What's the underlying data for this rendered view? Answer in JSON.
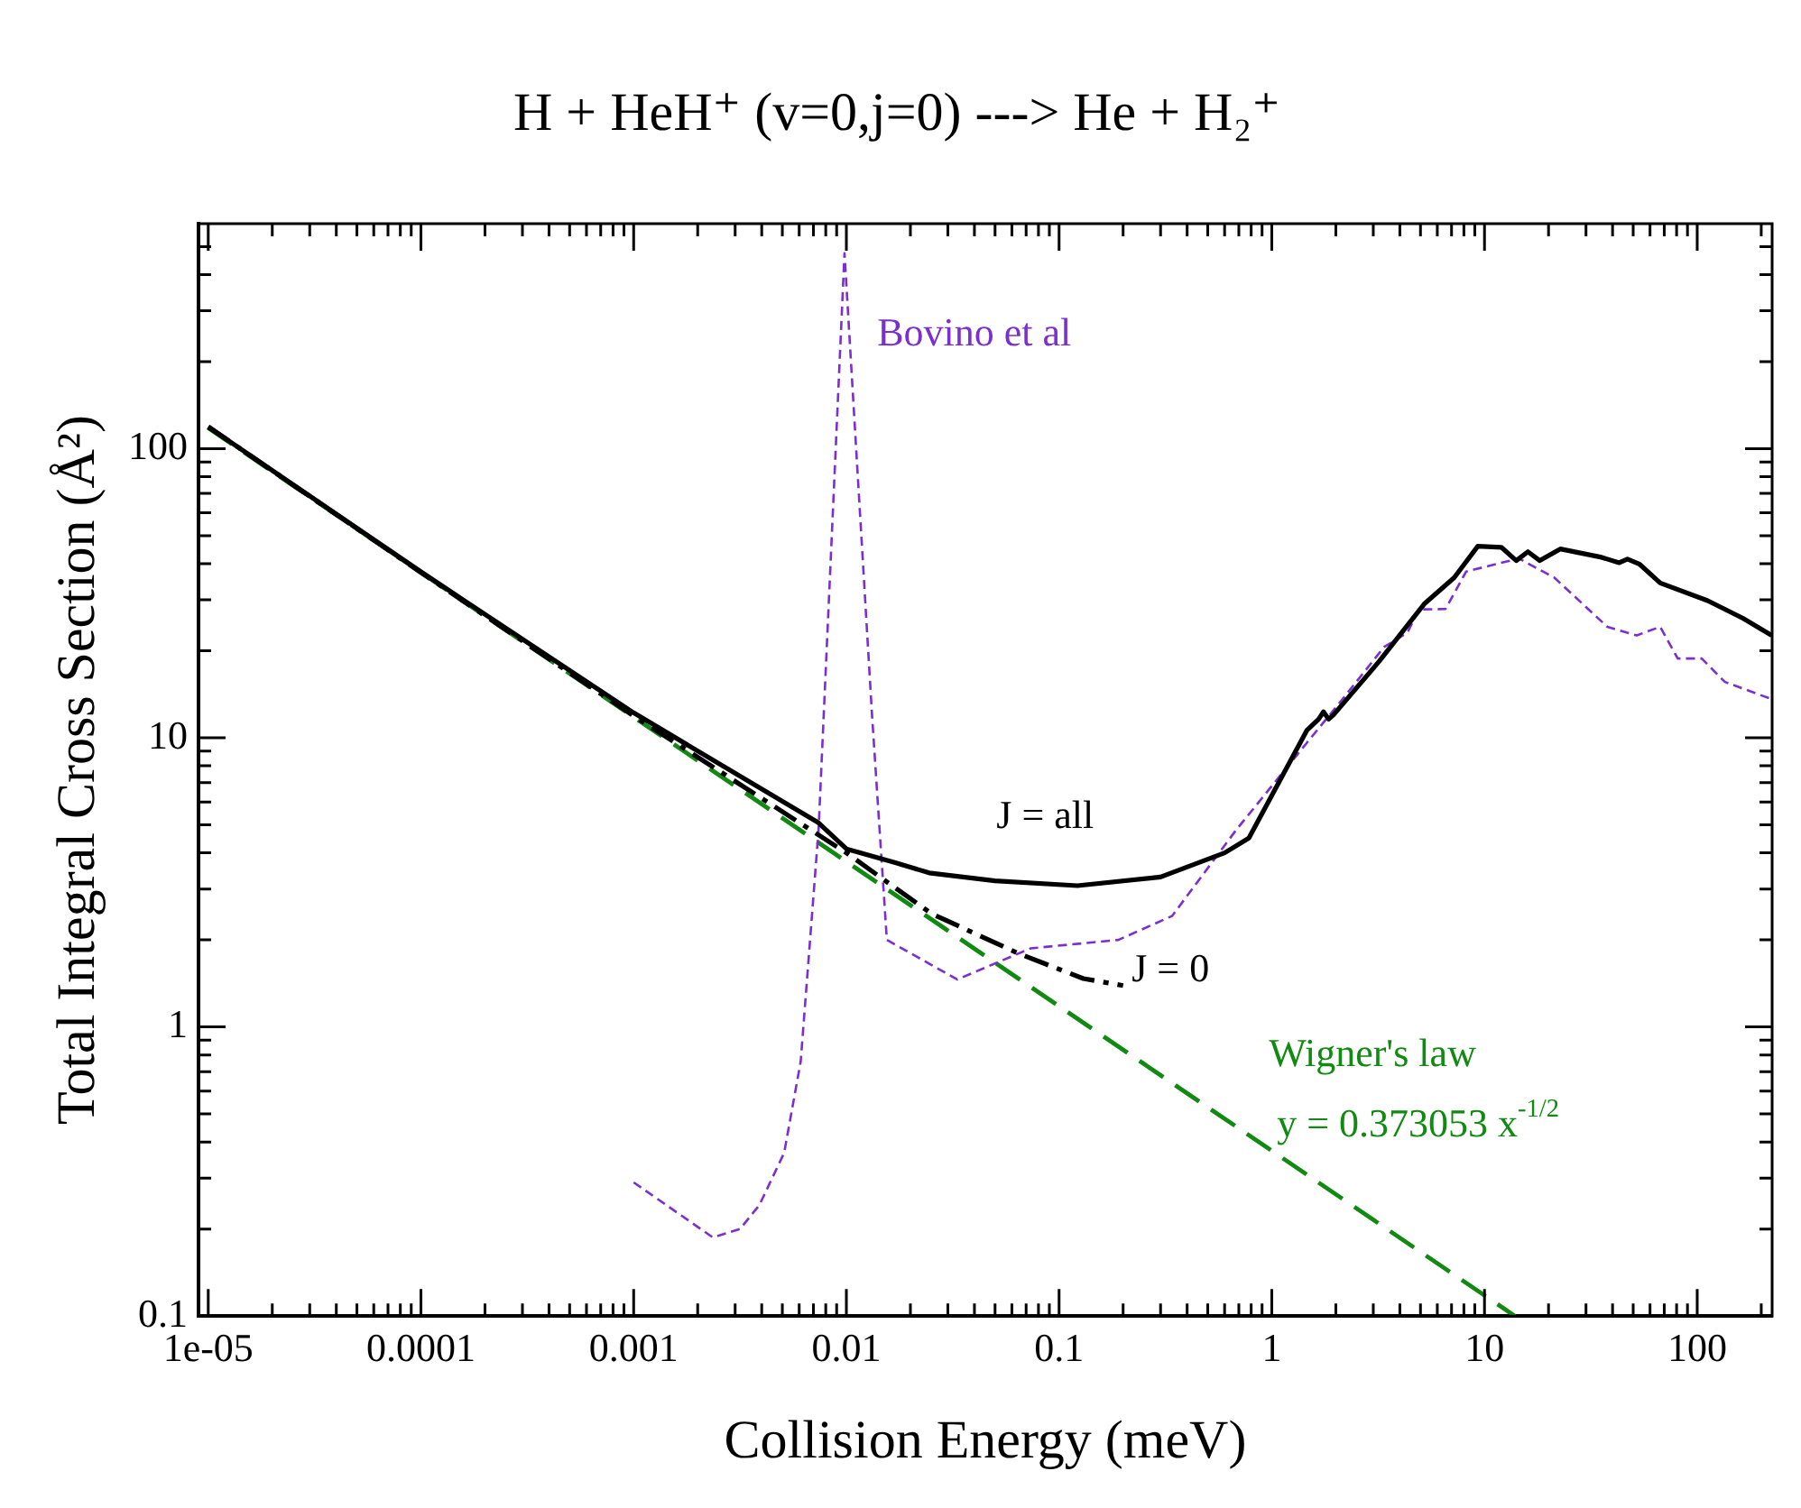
{
  "chart_data": {
    "type": "line",
    "title": "H + HeH⁺ (v=0,j=0) ---> He + H₂⁺",
    "xlabel": "Collision Energy (meV)",
    "ylabel": "Total Integral Cross Section (Å²)",
    "log": "xy",
    "xlim": [
      9e-06,
      225
    ],
    "ylim": [
      0.1,
      600
    ],
    "xticks": [
      {
        "value": 1e-05,
        "label": "1e-05"
      },
      {
        "value": 2e-05,
        "label": null
      },
      {
        "value": 3e-05,
        "label": null
      },
      {
        "value": 4e-05,
        "label": null
      },
      {
        "value": 5e-05,
        "label": null
      },
      {
        "value": 6e-05,
        "label": null
      },
      {
        "value": 7e-05,
        "label": null
      },
      {
        "value": 8e-05,
        "label": null
      },
      {
        "value": 9e-05,
        "label": null
      },
      0.0001,
      {
        "value": 0.0002,
        "label": null
      },
      {
        "value": 0.0003,
        "label": null
      },
      {
        "value": 0.0004,
        "label": null
      },
      {
        "value": 0.0005,
        "label": null
      },
      {
        "value": 0.0006,
        "label": null
      },
      {
        "value": 0.0007,
        "label": null
      },
      {
        "value": 0.0008,
        "label": null
      },
      {
        "value": 0.0009,
        "label": null
      },
      0.001,
      {
        "value": 0.002,
        "label": null
      },
      {
        "value": 0.003,
        "label": null
      },
      {
        "value": 0.004,
        "label": null
      },
      {
        "value": 0.005,
        "label": null
      },
      {
        "value": 0.006,
        "label": null
      },
      {
        "value": 0.007,
        "label": null
      },
      {
        "value": 0.008,
        "label": null
      },
      {
        "value": 0.009,
        "label": null
      },
      0.01,
      {
        "value": 0.02,
        "label": null
      },
      {
        "value": 0.03,
        "label": null
      },
      {
        "value": 0.04,
        "label": null
      },
      {
        "value": 0.05,
        "label": null
      },
      {
        "value": 0.06,
        "label": null
      },
      {
        "value": 0.07,
        "label": null
      },
      {
        "value": 0.08,
        "label": null
      },
      {
        "value": 0.09,
        "label": null
      },
      0.1,
      {
        "value": 0.2,
        "label": null
      },
      {
        "value": 0.3,
        "label": null
      },
      {
        "value": 0.4,
        "label": null
      },
      {
        "value": 0.5,
        "label": null
      },
      {
        "value": 0.6,
        "label": null
      },
      {
        "value": 0.7,
        "label": null
      },
      {
        "value": 0.8,
        "label": null
      },
      {
        "value": 0.9,
        "label": null
      },
      1,
      {
        "value": 2,
        "label": null
      },
      {
        "value": 3,
        "label": null
      },
      {
        "value": 4,
        "label": null
      },
      {
        "value": 5,
        "label": null
      },
      {
        "value": 6,
        "label": null
      },
      {
        "value": 7,
        "label": null
      },
      {
        "value": 8,
        "label": null
      },
      {
        "value": 9,
        "label": null
      },
      10,
      {
        "value": 20,
        "label": null
      },
      {
        "value": 30,
        "label": null
      },
      {
        "value": 40,
        "label": null
      },
      {
        "value": 50,
        "label": null
      },
      {
        "value": 60,
        "label": null
      },
      {
        "value": 70,
        "label": null
      },
      {
        "value": 80,
        "label": null
      },
      {
        "value": 90,
        "label": null
      },
      100,
      {
        "value": 200,
        "label": null
      }
    ],
    "yticks": [
      0.1,
      {
        "value": 0.2,
        "label": null
      },
      {
        "value": 0.3,
        "label": null
      },
      {
        "value": 0.4,
        "label": null
      },
      {
        "value": 0.5,
        "label": null
      },
      {
        "value": 0.6,
        "label": null
      },
      {
        "value": 0.7,
        "label": null
      },
      {
        "value": 0.8,
        "label": null
      },
      {
        "value": 0.9,
        "label": null
      },
      1,
      {
        "value": 2,
        "label": null
      },
      {
        "value": 3,
        "label": null
      },
      {
        "value": 4,
        "label": null
      },
      {
        "value": 5,
        "label": null
      },
      {
        "value": 6,
        "label": null
      },
      {
        "value": 7,
        "label": null
      },
      {
        "value": 8,
        "label": null
      },
      {
        "value": 9,
        "label": null
      },
      10,
      {
        "value": 20,
        "label": null
      },
      {
        "value": 30,
        "label": null
      },
      {
        "value": 40,
        "label": null
      },
      {
        "value": 50,
        "label": null
      },
      {
        "value": 60,
        "label": null
      },
      {
        "value": 70,
        "label": null
      },
      {
        "value": 80,
        "label": null
      },
      {
        "value": 90,
        "label": null
      },
      100,
      {
        "value": 200,
        "label": null
      },
      {
        "value": 300,
        "label": null
      },
      {
        "value": 400,
        "label": null
      },
      {
        "value": 500,
        "label": null
      }
    ],
    "marker": "none",
    "series": [
      {
        "name": "J = all",
        "color": "#000000",
        "line_style": "solid",
        "x": [
          1e-05,
          0.0001,
          0.001,
          0.0074,
          0.01,
          0.017,
          0.0245,
          0.05,
          0.122,
          0.3,
          0.6,
          0.78,
          1.46,
          1.66,
          1.75,
          1.85,
          1.95,
          3.2,
          5.2,
          7.2,
          9.3,
          12,
          14.1,
          16,
          18.2,
          22.7,
          35.5,
          43,
          47,
          53.7,
          67,
          112,
          164,
          224
        ],
        "values": [
          119,
          37.5,
          12.2,
          5.08,
          4.13,
          3.7,
          3.41,
          3.2,
          3.08,
          3.3,
          4.0,
          4.5,
          10.6,
          11.6,
          12.3,
          11.6,
          12,
          18.4,
          29,
          35.8,
          46,
          45.6,
          41,
          44,
          41,
          45,
          42.1,
          40.3,
          41.5,
          39.8,
          34.3,
          29.8,
          25.9,
          22.6
        ]
      },
      {
        "name": "J = 0",
        "color": "#000000",
        "line_style": "dashed",
        "x": [
          1e-05,
          0.0001,
          0.001,
          0.01,
          0.025,
          0.065,
          0.13,
          0.2
        ],
        "values": [
          119,
          37.3,
          11.9,
          4.0,
          2.47,
          1.79,
          1.47,
          1.39
        ]
      },
      {
        "name": "Bovino et al",
        "color": "#7b2fd0",
        "line_style": "dashed",
        "x": [
          0.001,
          0.00236,
          0.00316,
          0.0039,
          0.0051,
          0.0061,
          0.0074,
          0.0098,
          0.0132,
          0.0155,
          0.0332,
          0.0736,
          0.19,
          0.34,
          0.68,
          1.46,
          2.15,
          3.37,
          4.34,
          4.93,
          6.56,
          8.2,
          14.5,
          21.3,
          37.8,
          52,
          67,
          81,
          105,
          135,
          224
        ],
        "values": [
          0.29,
          0.187,
          0.2,
          0.242,
          0.367,
          0.76,
          4.8,
          474,
          12,
          2.0,
          1.46,
          1.87,
          2.0,
          2.42,
          4.8,
          9.6,
          13.6,
          20.6,
          23.1,
          27.8,
          27.9,
          37.6,
          41.7,
          35.8,
          24.2,
          22.6,
          24.2,
          18.8,
          18.8,
          15.6,
          13.6
        ]
      },
      {
        "name": "Wigner's law",
        "color": "#108a10",
        "line_style": "dashed",
        "x": [
          1e-05,
          0.001,
          0.1,
          13.9
        ],
        "values": [
          118,
          11.8,
          1.18,
          0.1
        ]
      }
    ],
    "annotations": [
      "y = 0.373053 x$^{-1/2}$"
    ]
  }
}
